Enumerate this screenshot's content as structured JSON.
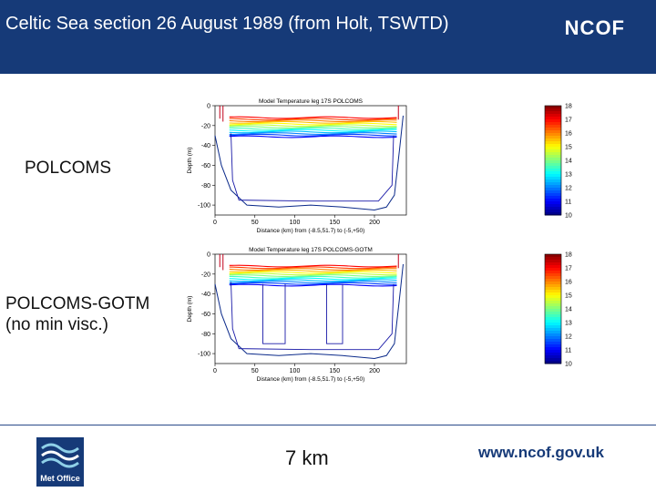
{
  "slide": {
    "title": "Celtic Sea section 26 August 1989 (from Holt, TSWTD)",
    "brand": "NCOF",
    "label_top": "POLCOMS",
    "label_bottom_line1": "POLCOMS-GOTM",
    "label_bottom_line2": "(no min visc.)",
    "scale_note": "7 km",
    "url": "www.ncof.gov.uk",
    "logo_text": "Met Office"
  },
  "chart_data": [
    {
      "type": "contour",
      "title": "Model Temperature leg 17S POLCOMS",
      "xlabel": "Distance (km) from (-8.5,51.7) to (-5,+50)",
      "ylabel": "Depth (m)",
      "x_ticks": [
        "0",
        "50",
        "100",
        "150",
        "200"
      ],
      "y_ticks": [
        "0",
        "-20",
        "-40",
        "-60",
        "-80",
        "-100"
      ],
      "xlim": [
        0,
        240
      ],
      "ylim": [
        -110,
        0
      ],
      "colorbar_ticks": [
        "18",
        "17",
        "16",
        "15",
        "14",
        "13",
        "12",
        "11",
        "10"
      ],
      "colorbar_range": [
        10,
        18
      ]
    },
    {
      "type": "contour",
      "title": "Model Temperature leg 17S POLCOMS-GOTM",
      "xlabel": "Distance (km) from (-8.5,51.7) to (-5,+50)",
      "ylabel": "Depth (m)",
      "x_ticks": [
        "0",
        "50",
        "100",
        "150",
        "200"
      ],
      "y_ticks": [
        "0",
        "-20",
        "-40",
        "-60",
        "-80",
        "-100"
      ],
      "xlim": [
        0,
        240
      ],
      "ylim": [
        -110,
        0
      ],
      "colorbar_ticks": [
        "18",
        "17",
        "16",
        "15",
        "14",
        "13",
        "12",
        "11",
        "10"
      ],
      "colorbar_range": [
        10,
        18
      ]
    }
  ]
}
